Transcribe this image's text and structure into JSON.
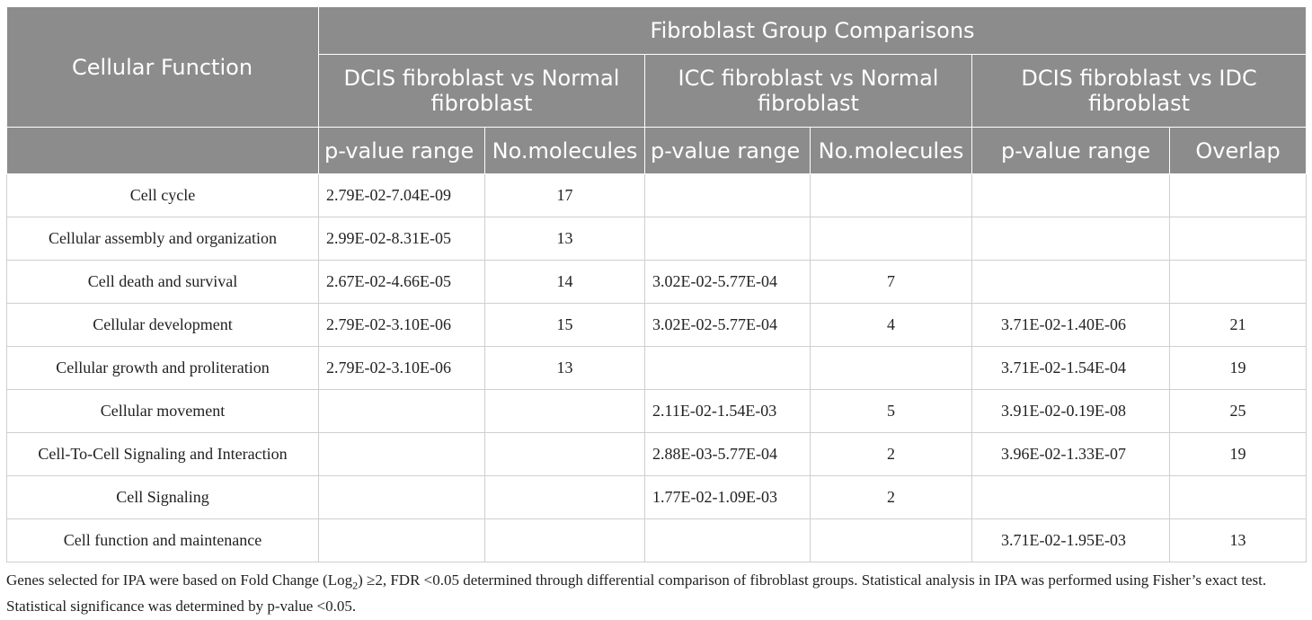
{
  "table": {
    "row_header": "Cellular Function",
    "group_header": "Fibroblast Group Comparisons",
    "comparisons": [
      "DCIS fibroblast vs Normal fibroblast",
      "ICC fibroblast vs Normal fibroblast",
      "DCIS fibroblast vs IDC fibroblast"
    ],
    "subheaders": [
      "p-value range",
      "No.molecules",
      "p-value range",
      "No.molecules",
      "p-value range",
      "Overlap"
    ],
    "rows": [
      {
        "function": "Cell cycle",
        "cells": [
          "2.79E-02-7.04E-09",
          "17",
          "",
          "",
          "",
          ""
        ]
      },
      {
        "function": "Cellular assembly and organization",
        "cells": [
          "2.99E-02-8.31E-05",
          "13",
          "",
          "",
          "",
          ""
        ]
      },
      {
        "function": "Cell death and survival",
        "cells": [
          "2.67E-02-4.66E-05",
          "14",
          "3.02E-02-5.77E-04",
          "7",
          "",
          ""
        ]
      },
      {
        "function": "Cellular development",
        "cells": [
          "2.79E-02-3.10E-06",
          "15",
          "3.02E-02-5.77E-04",
          "4",
          "3.71E-02-1.40E-06",
          "21"
        ]
      },
      {
        "function": "Cellular growth and proliteration",
        "cells": [
          "2.79E-02-3.10E-06",
          "13",
          "",
          "",
          "3.71E-02-1.54E-04",
          "19"
        ]
      },
      {
        "function": "Cellular movement",
        "cells": [
          "",
          "",
          "2.11E-02-1.54E-03",
          "5",
          "3.91E-02-0.19E-08",
          "25"
        ]
      },
      {
        "function": "Cell-To-Cell Signaling and Interaction",
        "cells": [
          "",
          "",
          "2.88E-03-5.77E-04",
          "2",
          "3.96E-02-1.33E-07",
          "19"
        ]
      },
      {
        "function": "Cell Signaling",
        "cells": [
          "",
          "",
          "1.77E-02-1.09E-03",
          "2",
          "",
          ""
        ]
      },
      {
        "function": "Cell function and maintenance",
        "cells": [
          "",
          "",
          "",
          "",
          "3.71E-02-1.95E-03",
          "13"
        ]
      }
    ]
  },
  "footnote": {
    "before_sub": "Genes selected for IPA were based on Fold Change (Log",
    "sub": "2",
    "after_sub": ") ≥2, FDR <0.05 determined through differential comparison of fibroblast groups. Statistical analysis in IPA was performed using Fisher’s exact test. Statistical significance was determined by p-value <0.05."
  },
  "colors": {
    "header_bg": "#8c8c8c",
    "header_text": "#ffffff",
    "grid": "#cfcfcf"
  }
}
